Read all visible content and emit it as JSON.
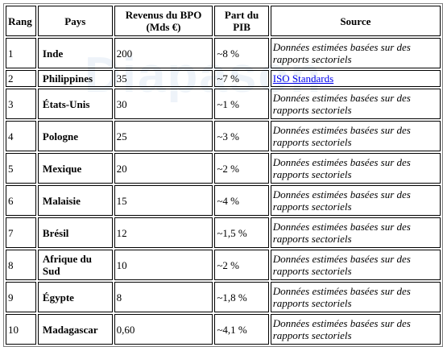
{
  "table": {
    "headers": {
      "rank": "Rang",
      "country": "Pays",
      "revenue": "Revenus du BPO (Mds €)",
      "gdp_share": "Part du PIB",
      "source": "Source"
    },
    "rows": [
      {
        "rank": "1",
        "country": "Inde",
        "revenue": "200",
        "gdp_share": "~8 %",
        "source": "Données estimées basées sur des rapports sectoriels",
        "source_is_link": false
      },
      {
        "rank": "2",
        "country": "Philippines",
        "revenue": "35",
        "gdp_share": "~7 %",
        "source": "ISO Standards",
        "source_is_link": true
      },
      {
        "rank": "3",
        "country": "États-Unis",
        "revenue": "30",
        "gdp_share": "~1 %",
        "source": "Données estimées basées sur des rapports sectoriels",
        "source_is_link": false
      },
      {
        "rank": "4",
        "country": "Pologne",
        "revenue": "25",
        "gdp_share": "~3 %",
        "source": "Données estimées basées sur des rapports sectoriels",
        "source_is_link": false
      },
      {
        "rank": "5",
        "country": "Mexique",
        "revenue": "20",
        "gdp_share": "~2 %",
        "source": "Données estimées basées sur des rapports sectoriels",
        "source_is_link": false
      },
      {
        "rank": "6",
        "country": "Malaisie",
        "revenue": "15",
        "gdp_share": "~4 %",
        "source": "Données estimées basées sur des rapports sectoriels",
        "source_is_link": false
      },
      {
        "rank": "7",
        "country": "Brésil",
        "revenue": "12",
        "gdp_share": "~1,5 %",
        "source": "Données estimées basées sur des rapports sectoriels",
        "source_is_link": false
      },
      {
        "rank": "8",
        "country": "Afrique du Sud",
        "revenue": "10",
        "gdp_share": "~2 %",
        "source": "Données estimées basées sur des rapports sectoriels",
        "source_is_link": false
      },
      {
        "rank": "9",
        "country": "Égypte",
        "revenue": "8",
        "gdp_share": "~1,8 %",
        "source": "Données estimées basées sur des rapports sectoriels",
        "source_is_link": false
      },
      {
        "rank": "10",
        "country": "Madagascar",
        "revenue": "0,60",
        "gdp_share": "~4,1 %",
        "source": "Données estimées basées sur des rapports sectoriels",
        "source_is_link": false
      }
    ]
  }
}
